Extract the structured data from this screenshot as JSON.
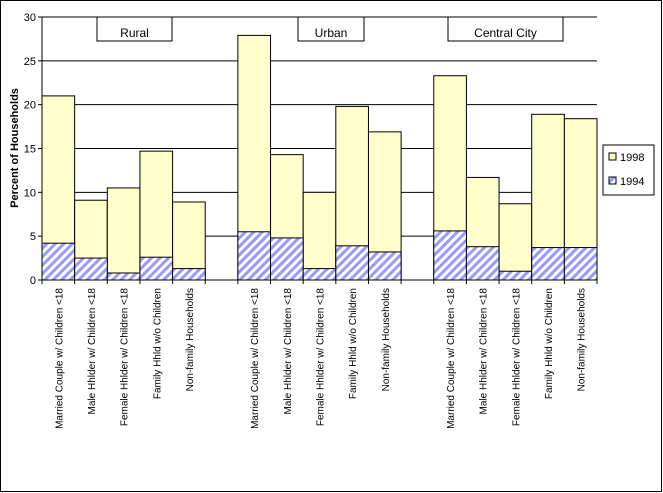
{
  "chart_data": {
    "type": "bar",
    "y_label": "Percent of Households",
    "categories": [
      "Married Couple w/ Children <18",
      "Male Hhlder w/ Children <18",
      "Female Hhlder w/ Children <18",
      "Family Hhld w/o Children",
      "Non-family Households",
      null,
      "Married Couple w/ Children <18",
      "Male Hhlder w/ Children <18",
      "Female Hhlder w/ Children <18",
      "Family Hhld w/o Children",
      "Non-family Households",
      null,
      "Married Couple w/ Children <18",
      "Male Hhlder w/ Children <18",
      "Female Hhlder w/ Children <18",
      "Family Hhld w/o Children",
      "Non-family Households"
    ],
    "series": [
      {
        "name": "1998",
        "color": "#ffffcc",
        "values": [
          21,
          9.1,
          10.5,
          14.7,
          8.9,
          null,
          27.9,
          14.3,
          10.0,
          19.8,
          16.9,
          null,
          23.3,
          11.7,
          8.7,
          18.9,
          18.4
        ]
      },
      {
        "name": "1994",
        "color": "#9999ff",
        "values": [
          4.2,
          2.5,
          0.8,
          2.6,
          1.3,
          null,
          5.5,
          4.8,
          1.3,
          3.9,
          3.2,
          null,
          5.6,
          3.8,
          1.0,
          3.7,
          3.7
        ]
      }
    ],
    "annotations": [
      "Rural",
      "Urban",
      "Central City"
    ],
    "ylim": [
      0,
      30
    ],
    "yticks": [
      0,
      5,
      10,
      15,
      20,
      25,
      30
    ],
    "grid": true,
    "legend": "right"
  }
}
